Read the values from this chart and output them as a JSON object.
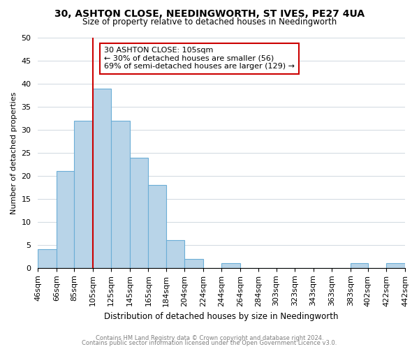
{
  "title": "30, ASHTON CLOSE, NEEDINGWORTH, ST IVES, PE27 4UA",
  "subtitle": "Size of property relative to detached houses in Needingworth",
  "xlabel": "Distribution of detached houses by size in Needingworth",
  "ylabel": "Number of detached properties",
  "footer_line1": "Contains HM Land Registry data © Crown copyright and database right 2024.",
  "footer_line2": "Contains public sector information licensed under the Open Government Licence v3.0.",
  "annotation_title": "30 ASHTON CLOSE: 105sqm",
  "annotation_line1": "← 30% of detached houses are smaller (56)",
  "annotation_line2": "69% of semi-detached houses are larger (129) →",
  "bar_edges": [
    46,
    66,
    85,
    105,
    125,
    145,
    165,
    184,
    204,
    224,
    244,
    264,
    284,
    303,
    323,
    343,
    363,
    383,
    402,
    422,
    442
  ],
  "bar_heights": [
    4,
    21,
    32,
    39,
    32,
    24,
    18,
    6,
    2,
    0,
    1,
    0,
    0,
    0,
    0,
    0,
    0,
    1,
    0,
    1
  ],
  "bar_color": "#b8d4e8",
  "bar_edgecolor": "#6baed6",
  "vline_x": 105,
  "vline_color": "#cc0000",
  "ylim": [
    0,
    50
  ],
  "yticks": [
    0,
    5,
    10,
    15,
    20,
    25,
    30,
    35,
    40,
    45,
    50
  ],
  "annotation_box_edgecolor": "#cc0000",
  "background_color": "#ffffff",
  "grid_color": "#d0d8e0"
}
